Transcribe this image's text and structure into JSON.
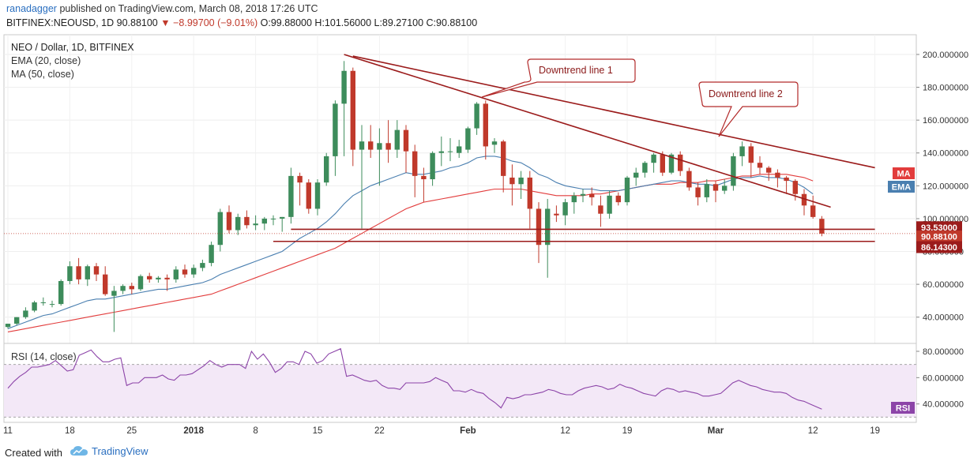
{
  "header": {
    "author": "ranadagger",
    "published_text": "published on TradingView.com, March 08, 2018 17:26 UTC",
    "symbol": "BITFINEX:NEOUSD, 1D",
    "last": "90.88100",
    "change": "−8.99700 (−9.01%)",
    "ohlc": "O:99.88000 H:101.56000 L:89.27100 C:90.88100"
  },
  "legend": {
    "title": "NEO / Dollar, 1D, BITFINEX",
    "ema": "EMA (20, close)",
    "ma": "MA (50, close)"
  },
  "annotations": {
    "downtrend1": "Downtrend line 1",
    "downtrend2": "Downtrend line 2"
  },
  "price_badges": {
    "ma": "MA",
    "ema": "EMA",
    "level_top": "93.53000",
    "last": "90.88100",
    "level_bottom": "86.14300"
  },
  "rsi": {
    "title": "RSI (14, close)",
    "badge": "RSI"
  },
  "footer": {
    "created": "Created with",
    "brand": "TradingView"
  },
  "colors": {
    "up": "#3d8c5b",
    "down": "#c0392b",
    "ema": "#4a7fb0",
    "ma": "#e23c3c",
    "trend": "#9b1b1b",
    "rsi": "#8c44a8",
    "rsi_fill": "#f3e8f7"
  },
  "chart_data": [
    {
      "type": "candlestick",
      "title": "NEO / Dollar, 1D, BITFINEX",
      "ylim": [
        24,
        212
      ],
      "y_ticks": [
        "40.000000",
        "60.000000",
        "80.000000",
        "100.000000",
        "120.000000",
        "140.000000",
        "160.000000",
        "180.000000",
        "200.000000"
      ],
      "x_ticks": [
        "11",
        "18",
        "25",
        "2018",
        "8",
        "15",
        "22",
        "Feb",
        "12",
        "19",
        "Mar",
        "12",
        "19"
      ],
      "candles": [
        {
          "o": 34,
          "h": 36,
          "l": 33,
          "c": 36
        },
        {
          "o": 36,
          "h": 40,
          "l": 35,
          "c": 40
        },
        {
          "o": 40,
          "h": 46,
          "l": 39,
          "c": 44
        },
        {
          "o": 44,
          "h": 50,
          "l": 43,
          "c": 49
        },
        {
          "o": 49,
          "h": 52,
          "l": 47,
          "c": 49
        },
        {
          "o": 48,
          "h": 50,
          "l": 46,
          "c": 48
        },
        {
          "o": 48,
          "h": 63,
          "l": 47,
          "c": 62
        },
        {
          "o": 62,
          "h": 74,
          "l": 60,
          "c": 71
        },
        {
          "o": 71,
          "h": 76,
          "l": 60,
          "c": 63
        },
        {
          "o": 63,
          "h": 72,
          "l": 59,
          "c": 71
        },
        {
          "o": 71,
          "h": 73,
          "l": 62,
          "c": 66
        },
        {
          "o": 66,
          "h": 71,
          "l": 53,
          "c": 54
        },
        {
          "o": 53,
          "h": 59,
          "l": 31,
          "c": 56
        },
        {
          "o": 56,
          "h": 60,
          "l": 54,
          "c": 59
        },
        {
          "o": 59,
          "h": 61,
          "l": 54,
          "c": 57
        },
        {
          "o": 57,
          "h": 66,
          "l": 56,
          "c": 65
        },
        {
          "o": 65,
          "h": 67,
          "l": 61,
          "c": 63
        },
        {
          "o": 63,
          "h": 65,
          "l": 61,
          "c": 64
        },
        {
          "o": 64,
          "h": 66,
          "l": 56,
          "c": 63
        },
        {
          "o": 63,
          "h": 71,
          "l": 61,
          "c": 69
        },
        {
          "o": 69,
          "h": 72,
          "l": 64,
          "c": 66
        },
        {
          "o": 66,
          "h": 72,
          "l": 64,
          "c": 70
        },
        {
          "o": 70,
          "h": 75,
          "l": 68,
          "c": 73
        },
        {
          "o": 73,
          "h": 86,
          "l": 71,
          "c": 84
        },
        {
          "o": 84,
          "h": 106,
          "l": 80,
          "c": 104
        },
        {
          "o": 104,
          "h": 108,
          "l": 91,
          "c": 93
        },
        {
          "o": 93,
          "h": 103,
          "l": 90,
          "c": 101
        },
        {
          "o": 101,
          "h": 105,
          "l": 94,
          "c": 96
        },
        {
          "o": 96,
          "h": 102,
          "l": 93,
          "c": 97
        },
        {
          "o": 97,
          "h": 101,
          "l": 93,
          "c": 100
        },
        {
          "o": 100,
          "h": 102,
          "l": 96,
          "c": 100
        },
        {
          "o": 100,
          "h": 101,
          "l": 92,
          "c": 101
        },
        {
          "o": 101,
          "h": 131,
          "l": 97,
          "c": 126
        },
        {
          "o": 126,
          "h": 128,
          "l": 108,
          "c": 122
        },
        {
          "o": 122,
          "h": 124,
          "l": 103,
          "c": 106
        },
        {
          "o": 106,
          "h": 124,
          "l": 102,
          "c": 122
        },
        {
          "o": 122,
          "h": 140,
          "l": 120,
          "c": 138
        },
        {
          "o": 138,
          "h": 172,
          "l": 126,
          "c": 170
        },
        {
          "o": 170,
          "h": 196,
          "l": 138,
          "c": 190
        },
        {
          "o": 190,
          "h": 192,
          "l": 132,
          "c": 142
        },
        {
          "o": 142,
          "h": 157,
          "l": 94,
          "c": 147
        },
        {
          "o": 147,
          "h": 157,
          "l": 137,
          "c": 142
        },
        {
          "o": 142,
          "h": 155,
          "l": 120,
          "c": 146
        },
        {
          "o": 146,
          "h": 160,
          "l": 134,
          "c": 142
        },
        {
          "o": 142,
          "h": 160,
          "l": 137,
          "c": 154
        },
        {
          "o": 154,
          "h": 157,
          "l": 128,
          "c": 141
        },
        {
          "o": 141,
          "h": 145,
          "l": 113,
          "c": 126
        },
        {
          "o": 126,
          "h": 131,
          "l": 110,
          "c": 124
        },
        {
          "o": 124,
          "h": 141,
          "l": 120,
          "c": 140
        },
        {
          "o": 140,
          "h": 150,
          "l": 132,
          "c": 141
        },
        {
          "o": 141,
          "h": 149,
          "l": 135,
          "c": 141
        },
        {
          "o": 140,
          "h": 148,
          "l": 137,
          "c": 144
        },
        {
          "o": 142,
          "h": 156,
          "l": 140,
          "c": 155
        },
        {
          "o": 155,
          "h": 171,
          "l": 151,
          "c": 170
        },
        {
          "o": 170,
          "h": 172,
          "l": 136,
          "c": 144
        },
        {
          "o": 145,
          "h": 149,
          "l": 140,
          "c": 147
        },
        {
          "o": 147,
          "h": 148,
          "l": 116,
          "c": 126
        },
        {
          "o": 125,
          "h": 133,
          "l": 108,
          "c": 121
        },
        {
          "o": 121,
          "h": 129,
          "l": 112,
          "c": 125
        },
        {
          "o": 125,
          "h": 129,
          "l": 94,
          "c": 106
        },
        {
          "o": 106,
          "h": 110,
          "l": 73,
          "c": 84
        },
        {
          "o": 84,
          "h": 112,
          "l": 64,
          "c": 106
        },
        {
          "o": 103,
          "h": 108,
          "l": 98,
          "c": 102
        },
        {
          "o": 102,
          "h": 112,
          "l": 96,
          "c": 110
        },
        {
          "o": 110,
          "h": 116,
          "l": 103,
          "c": 114
        },
        {
          "o": 114,
          "h": 118,
          "l": 110,
          "c": 115
        },
        {
          "o": 115,
          "h": 119,
          "l": 108,
          "c": 113
        },
        {
          "o": 108,
          "h": 114,
          "l": 95,
          "c": 103
        },
        {
          "o": 103,
          "h": 117,
          "l": 100,
          "c": 114
        },
        {
          "o": 114,
          "h": 116,
          "l": 108,
          "c": 110
        },
        {
          "o": 110,
          "h": 126,
          "l": 108,
          "c": 125
        },
        {
          "o": 125,
          "h": 131,
          "l": 120,
          "c": 128
        },
        {
          "o": 128,
          "h": 135,
          "l": 125,
          "c": 134
        },
        {
          "o": 134,
          "h": 140,
          "l": 128,
          "c": 139
        },
        {
          "o": 139,
          "h": 141,
          "l": 126,
          "c": 128
        },
        {
          "o": 128,
          "h": 140,
          "l": 127,
          "c": 139
        },
        {
          "o": 139,
          "h": 141,
          "l": 126,
          "c": 129
        },
        {
          "o": 129,
          "h": 131,
          "l": 117,
          "c": 119
        },
        {
          "o": 119,
          "h": 122,
          "l": 108,
          "c": 113
        },
        {
          "o": 113,
          "h": 124,
          "l": 110,
          "c": 121
        },
        {
          "o": 121,
          "h": 123,
          "l": 110,
          "c": 117
        },
        {
          "o": 117,
          "h": 124,
          "l": 115,
          "c": 120
        },
        {
          "o": 120,
          "h": 140,
          "l": 117,
          "c": 138
        },
        {
          "o": 138,
          "h": 147,
          "l": 132,
          "c": 144
        },
        {
          "o": 144,
          "h": 146,
          "l": 125,
          "c": 134
        },
        {
          "o": 134,
          "h": 138,
          "l": 127,
          "c": 131
        },
        {
          "o": 131,
          "h": 132,
          "l": 123,
          "c": 128
        },
        {
          "o": 128,
          "h": 130,
          "l": 119,
          "c": 125
        },
        {
          "o": 125,
          "h": 126,
          "l": 115,
          "c": 123
        },
        {
          "o": 123,
          "h": 124,
          "l": 111,
          "c": 115
        },
        {
          "o": 115,
          "h": 118,
          "l": 102,
          "c": 108
        },
        {
          "o": 108,
          "h": 114,
          "l": 100,
          "c": 101
        },
        {
          "o": 99.88,
          "h": 101.56,
          "l": 89.271,
          "c": 90.881
        }
      ],
      "indicators": {
        "ema": [
          33,
          35,
          37,
          39,
          41,
          42,
          44,
          46,
          48,
          50,
          51,
          51,
          52,
          53,
          54,
          55,
          56,
          57,
          57,
          58,
          59,
          60,
          61,
          63,
          66,
          68,
          70,
          72,
          74,
          76,
          78,
          80,
          84,
          88,
          91,
          94,
          98,
          103,
          109,
          114,
          117,
          120,
          122,
          124,
          126,
          128,
          127,
          127,
          128,
          129,
          131,
          132,
          134,
          137,
          138,
          138,
          137,
          135,
          134,
          131,
          127,
          125,
          122,
          120,
          119,
          118,
          118,
          117,
          117,
          117,
          118,
          119,
          120,
          121,
          122,
          123,
          123,
          122,
          121,
          121,
          120,
          122,
          124,
          125,
          125,
          126,
          125,
          125,
          124,
          122,
          119,
          115
        ],
        "ma": [
          31,
          32,
          33,
          34,
          35,
          36,
          37,
          38,
          39,
          40,
          41,
          42,
          43,
          44,
          45,
          46,
          47,
          48,
          49,
          50,
          51,
          52,
          53,
          54,
          56,
          58,
          60,
          62,
          64,
          66,
          68,
          70,
          72,
          74,
          76,
          78,
          80,
          82,
          85,
          88,
          91,
          94,
          97,
          100,
          103,
          106,
          108,
          110,
          111,
          112,
          113,
          114,
          115,
          116,
          117,
          118,
          118,
          118,
          118,
          117,
          116,
          115,
          114,
          114,
          114,
          114,
          115,
          115,
          116,
          117,
          118,
          119,
          120,
          121,
          121,
          121,
          122,
          122,
          122,
          123,
          123,
          124,
          125,
          126,
          126,
          127,
          127,
          127,
          127,
          126,
          125,
          123
        ]
      },
      "lines": [
        {
          "name": "Downtrend line 1",
          "from": {
            "i": 38,
            "v": 200
          },
          "to": {
            "i": 93,
            "v": 107
          }
        },
        {
          "name": "Downtrend line 2",
          "from": {
            "i": 39,
            "v": 199
          },
          "to": {
            "i": 98,
            "v": 131
          }
        },
        {
          "name": "93.53000",
          "value": 93.53,
          "from_i": 32,
          "to_i": 98
        },
        {
          "name": "86.14300",
          "value": 86.143,
          "from_i": 30,
          "to_i": 98
        }
      ]
    },
    {
      "type": "line",
      "title": "RSI (14, close)",
      "ylim": [
        26,
        86
      ],
      "band": [
        30,
        70
      ],
      "y_ticks": [
        "40.000000",
        "60.000000",
        "80.000000"
      ],
      "values": [
        52,
        57,
        61,
        64,
        68,
        68,
        69,
        70,
        73,
        69,
        65,
        66,
        77,
        79,
        81,
        76,
        72,
        72,
        74,
        75,
        54,
        56,
        56,
        60,
        60,
        60,
        62,
        59,
        58,
        62,
        62,
        63,
        66,
        69,
        73,
        70,
        68,
        70,
        70,
        70,
        67,
        80,
        74,
        78,
        72,
        64,
        67,
        72,
        72,
        70,
        80,
        78,
        71,
        73,
        78,
        80,
        82,
        61,
        62,
        60,
        58,
        57,
        58,
        54,
        52,
        52,
        51,
        56,
        56,
        56,
        56,
        57,
        60,
        58,
        56,
        50,
        50,
        49,
        51,
        49,
        48,
        44,
        41,
        37,
        45,
        44,
        45,
        47,
        47,
        48,
        49,
        51,
        50,
        48,
        47,
        47,
        50,
        52,
        53,
        54,
        53,
        51,
        52,
        55,
        53,
        52,
        50,
        48,
        47,
        46,
        50,
        52,
        51,
        49,
        50,
        49,
        48,
        46,
        46,
        47,
        48,
        52,
        56,
        58,
        56,
        54,
        53,
        51,
        50,
        49,
        49,
        48,
        45,
        43,
        42,
        40,
        38,
        36
      ]
    }
  ]
}
